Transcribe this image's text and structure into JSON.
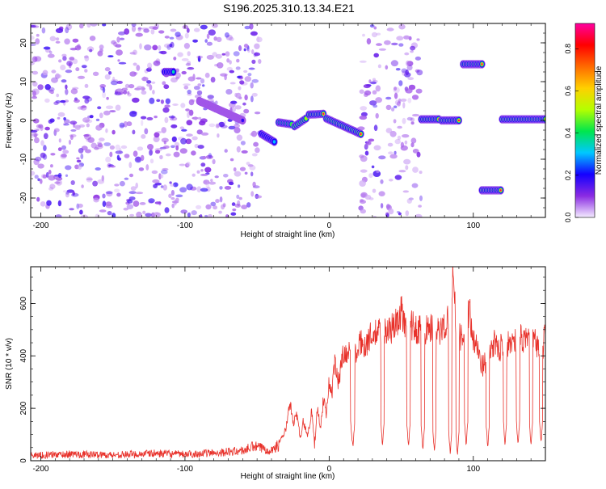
{
  "title": "S196.2025.310.13.34.E21",
  "colors": {
    "axis": "#000000",
    "snr_line": "#e8312a",
    "spectrogram_noise": "#7b2ff0",
    "background": "#ffffff"
  },
  "chart_data": [
    {
      "type": "heatmap",
      "name": "spectrogram",
      "xlabel": "Height of straight line (km)",
      "ylabel": "Frequency (Hz)",
      "xlim": [
        -207,
        150
      ],
      "ylim": [
        -25,
        25
      ],
      "xticks": [
        -200,
        -100,
        0,
        100
      ],
      "xticklabels": [
        "-200",
        "-100",
        "0",
        "100"
      ],
      "yticks": [
        -20,
        -10,
        0,
        10,
        20
      ],
      "yticklabels": [
        "-20",
        "-10",
        "0",
        "10",
        "20"
      ],
      "colorbar": {
        "label": "Normalized spectral amplitude",
        "range": [
          0,
          0.92
        ],
        "ticks": [
          0,
          0.2,
          0.4,
          0.6,
          0.8
        ],
        "ticklabels": [
          "0.0",
          "0.2",
          "0.4",
          "0.6",
          "0.8"
        ],
        "colormap": [
          "#f4ecff",
          "#8a2be2",
          "#1400ff",
          "#00c8ff",
          "#00e64d",
          "#b4ff00",
          "#ffd000",
          "#ff6a00",
          "#ff0000",
          "#ff00a0"
        ]
      },
      "noise_regions": [
        {
          "x0": -207,
          "x1": -48,
          "density": 1.0
        },
        {
          "x0": 22,
          "x1": 64,
          "density": 0.85
        }
      ],
      "features": [
        {
          "x0": -114,
          "x1": -108,
          "f0": 12.5,
          "f1": 12.5,
          "amp": 0.35
        },
        {
          "x0": -90,
          "x1": -60,
          "f0": 5,
          "f1": 0,
          "amp": 0.18
        },
        {
          "x0": -47,
          "x1": -38,
          "f0": -3.5,
          "f1": -5.5,
          "amp": 0.3
        },
        {
          "x0": -35,
          "x1": -26,
          "f0": -0.5,
          "f1": -1,
          "amp": 0.45
        },
        {
          "x0": -24,
          "x1": -16,
          "f0": -1.5,
          "f1": 0.5,
          "amp": 0.5
        },
        {
          "x0": -14,
          "x1": -4,
          "f0": 1.5,
          "f1": 1.7,
          "amp": 0.88
        },
        {
          "x0": -2,
          "x1": 22,
          "f0": 0.5,
          "f1": -3.5,
          "amp": 0.88
        },
        {
          "x0": 64,
          "x1": 76,
          "f0": 0.3,
          "f1": 0.3,
          "amp": 0.88
        },
        {
          "x0": 78,
          "x1": 90,
          "f0": 0,
          "f1": 0,
          "amp": 0.88
        },
        {
          "x0": 93,
          "x1": 106,
          "f0": 14.5,
          "f1": 14.5,
          "amp": 0.88
        },
        {
          "x0": 106,
          "x1": 119,
          "f0": -18,
          "f1": -18,
          "amp": 0.88
        },
        {
          "x0": 120,
          "x1": 150,
          "f0": 0.3,
          "f1": 0.3,
          "amp": 0.55
        }
      ]
    },
    {
      "type": "line",
      "name": "snr",
      "xlabel": "Height of straight line (km)",
      "ylabel": "SNR (10 * v/v)",
      "xlim": [
        -207,
        150
      ],
      "ylim": [
        0,
        740
      ],
      "xticks": [
        -200,
        -100,
        0,
        100
      ],
      "xticklabels": [
        "-200",
        "-100",
        "0",
        "100"
      ],
      "yticks": [
        0,
        200,
        400,
        600
      ],
      "yticklabels": [
        "0",
        "200",
        "400",
        "600"
      ],
      "series": [
        {
          "name": "SNR",
          "x": [
            -207,
            -180,
            -150,
            -120,
            -100,
            -80,
            -60,
            -52,
            -45,
            -40,
            -35,
            -30,
            -27,
            -25,
            -22,
            -20,
            -18,
            -15,
            -12,
            -10,
            -8,
            -6,
            -4,
            -2,
            0,
            2,
            4,
            6,
            8,
            10,
            14,
            18,
            22,
            25,
            28,
            32,
            36,
            40,
            44,
            48,
            50,
            52,
            56,
            60,
            64,
            68,
            72,
            75,
            80,
            84,
            86,
            88,
            90,
            92,
            95,
            98,
            100,
            102,
            104,
            106,
            110,
            114,
            118,
            120,
            124,
            128,
            132,
            136,
            140,
            144,
            148,
            150
          ],
          "y": [
            20,
            25,
            22,
            28,
            24,
            30,
            38,
            55,
            45,
            40,
            60,
            120,
            220,
            140,
            180,
            80,
            150,
            100,
            190,
            60,
            210,
            120,
            240,
            180,
            300,
            260,
            380,
            300,
            350,
            420,
            410,
            400,
            450,
            440,
            470,
            480,
            500,
            490,
            510,
            530,
            580,
            510,
            520,
            500,
            510,
            500,
            510,
            490,
            510,
            560,
            730,
            520,
            480,
            460,
            570,
            560,
            450,
            480,
            400,
            360,
            390,
            450,
            420,
            450,
            440,
            460,
            470,
            450,
            480,
            440,
            430,
            480
          ],
          "dips": [
            {
              "x": 16,
              "min": 60
            },
            {
              "x": 16.5,
              "min": 40
            },
            {
              "x": 37,
              "min": 50
            },
            {
              "x": 55,
              "min": 45
            },
            {
              "x": 65,
              "min": 30
            },
            {
              "x": 73,
              "min": 25
            },
            {
              "x": 84,
              "min": 20
            },
            {
              "x": 89,
              "min": 15
            },
            {
              "x": 95,
              "min": 50
            },
            {
              "x": 110,
              "min": 40
            },
            {
              "x": 122,
              "min": 55
            },
            {
              "x": 131,
              "min": 50
            },
            {
              "x": 140,
              "min": 45
            },
            {
              "x": 147,
              "min": 60
            }
          ]
        }
      ]
    }
  ]
}
